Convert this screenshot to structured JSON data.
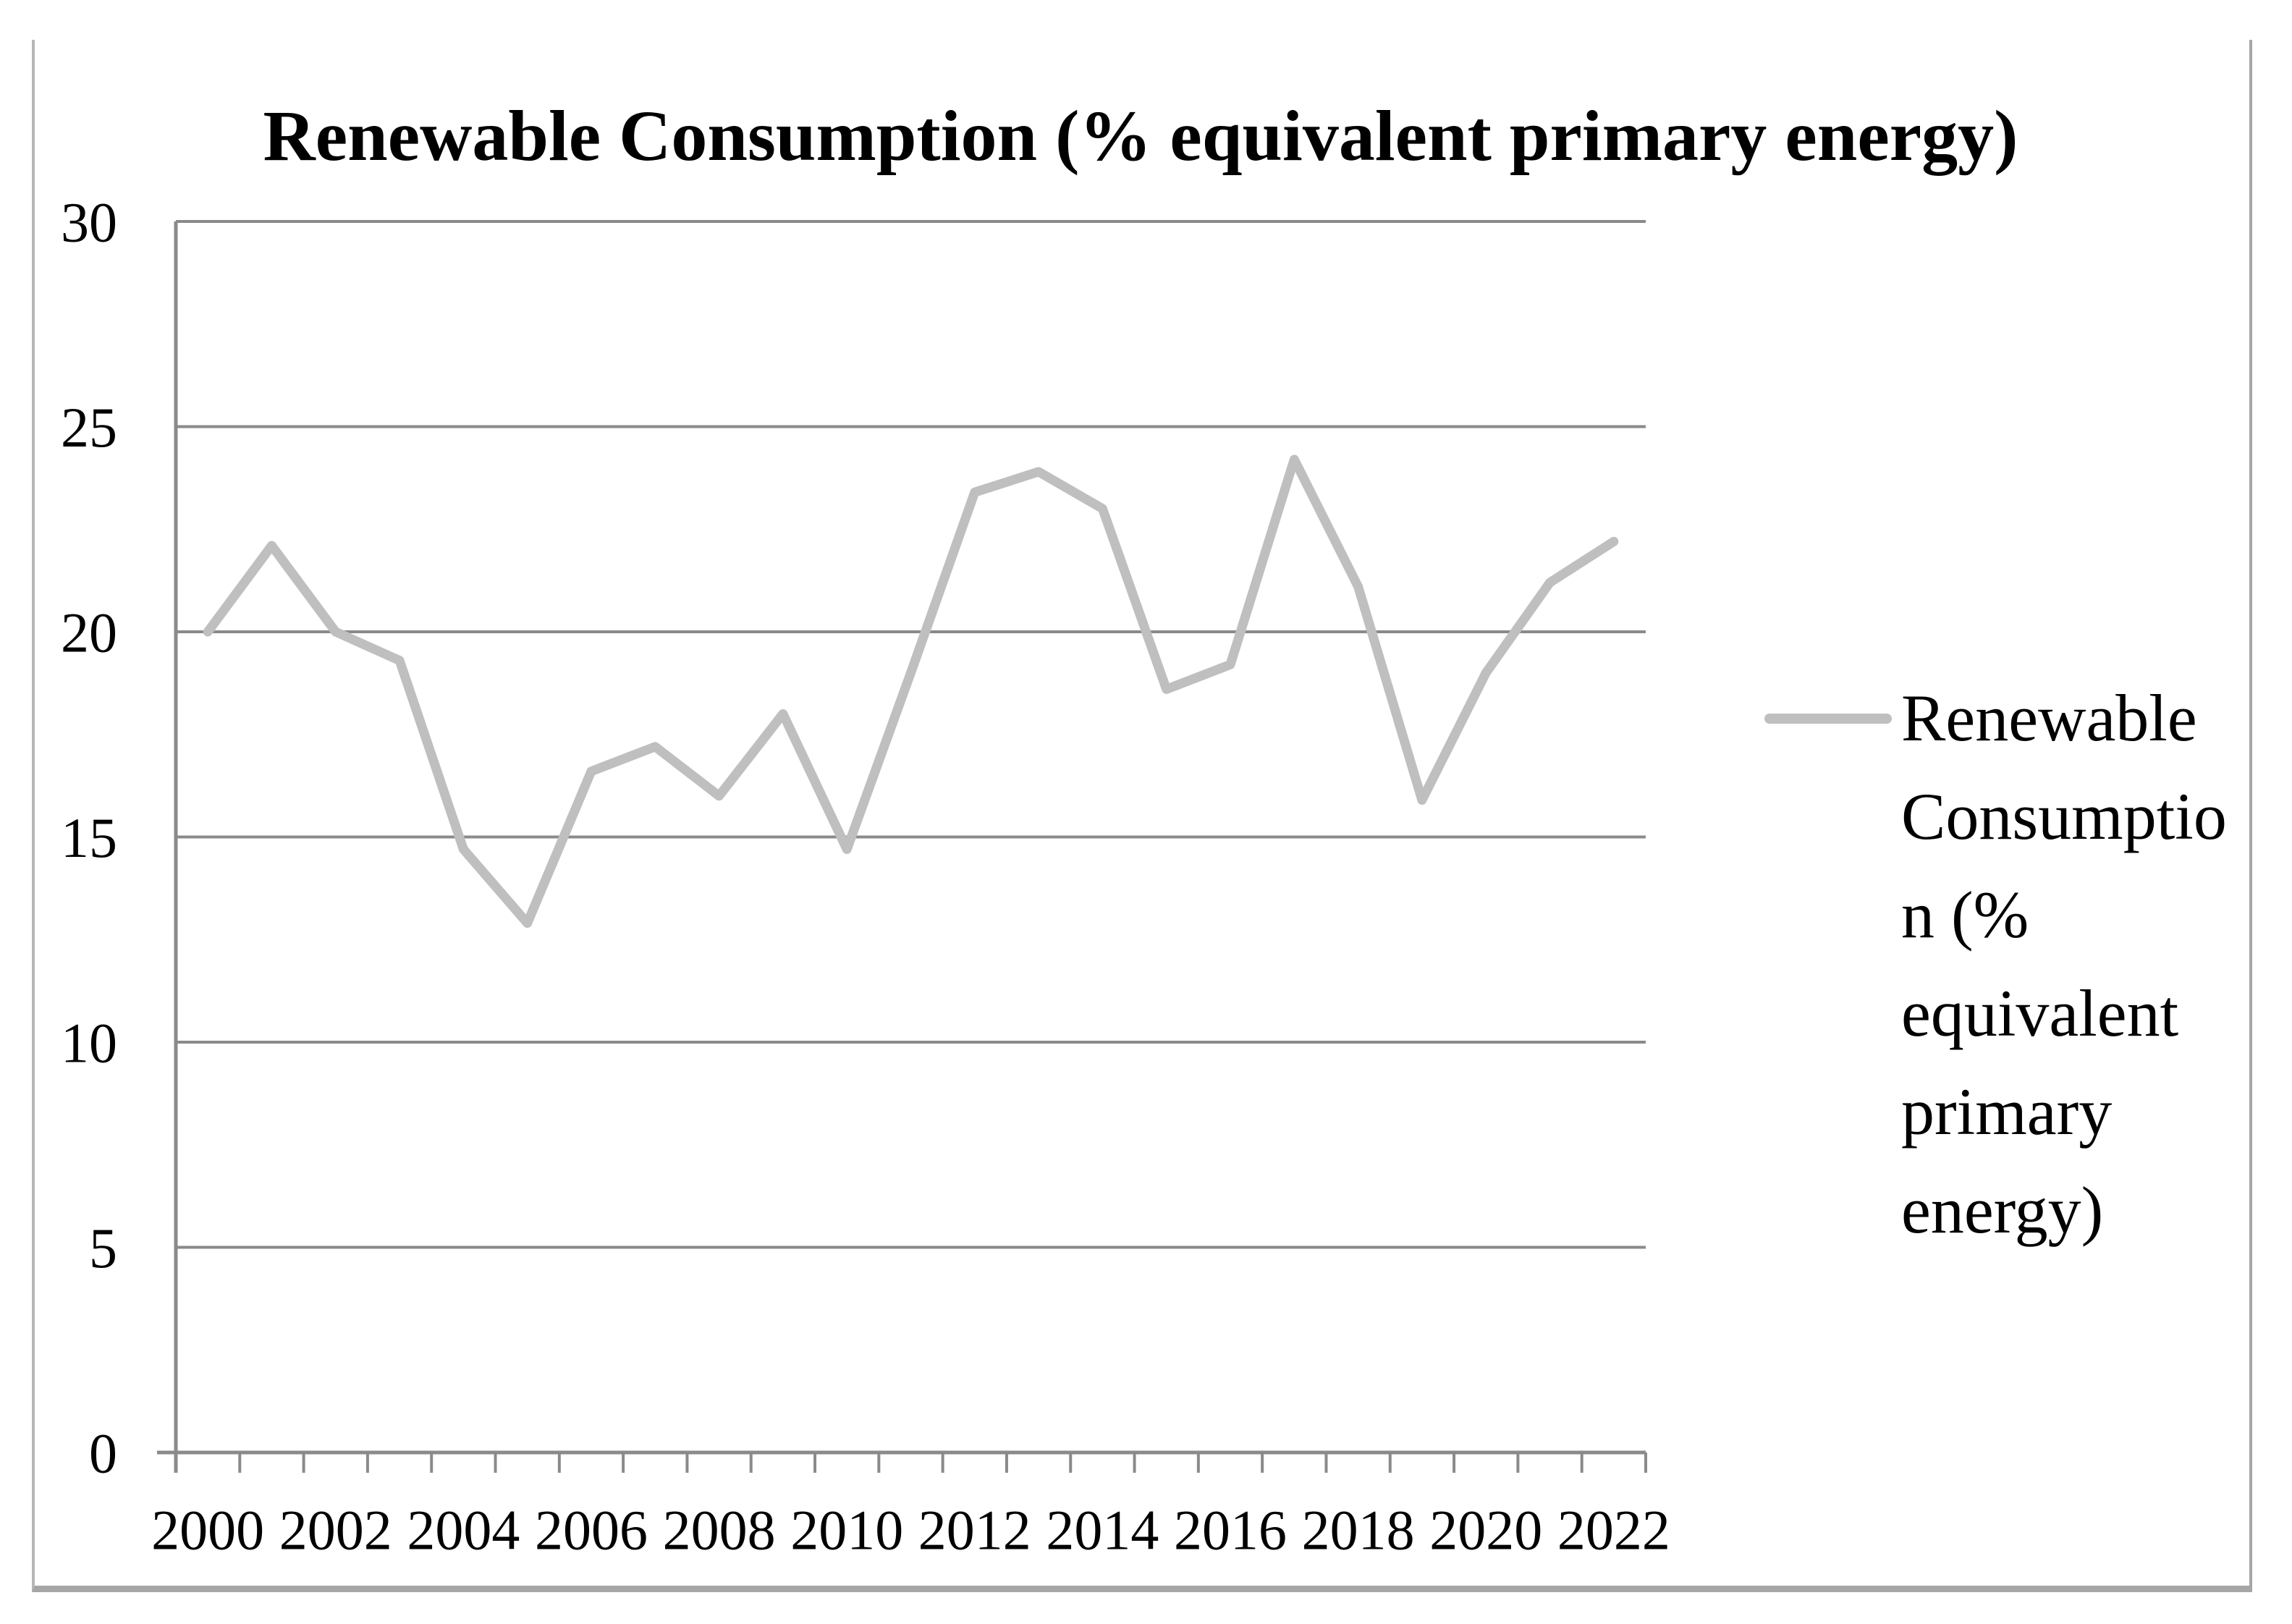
{
  "title": "Renewable Consumption (% equivalent primary energy)",
  "colors": {
    "series_line": "#bfbfbf",
    "gridline": "#8a8a8a",
    "axis_line": "#8a8a8a",
    "tick_mark": "#8a8a8a",
    "text": "#000000",
    "frame_side": "#b7b7b7",
    "frame_bottom": "#a6a6a6",
    "background": "#ffffff"
  },
  "legend": {
    "label": "Renewable Consumption (% equivalent primary energy)",
    "lines": [
      "Renewable",
      "Consumptio",
      "n (%",
      "equivalent",
      "primary",
      "energy)"
    ],
    "swatch_type": "line"
  },
  "y_axis": {
    "tick_labels": [
      "0",
      "5",
      "10",
      "15",
      "20",
      "25",
      "30"
    ],
    "min": 0,
    "max": 30,
    "interval": 5
  },
  "x_axis": {
    "tick_labels": [
      "2000",
      "2002",
      "2004",
      "2006",
      "2008",
      "2010",
      "2012",
      "2014",
      "2016",
      "2018",
      "2020",
      "2022"
    ],
    "label_every_n_years": 2
  },
  "chart_data": {
    "type": "line",
    "title": "Renewable Consumption (% equivalent primary energy)",
    "x": [
      2000,
      2001,
      2002,
      2003,
      2004,
      2005,
      2006,
      2007,
      2008,
      2009,
      2010,
      2011,
      2012,
      2013,
      2014,
      2015,
      2016,
      2017,
      2018,
      2019,
      2020,
      2021,
      2022
    ],
    "series": [
      {
        "name": "Renewable Consumption (% equivalent primary energy)",
        "values": [
          20.0,
          22.1,
          20.0,
          19.3,
          14.7,
          12.9,
          16.6,
          17.2,
          16.0,
          18.0,
          14.7,
          19.0,
          23.4,
          23.9,
          23.0,
          18.6,
          19.2,
          24.2,
          21.1,
          15.9,
          19.0,
          21.2,
          22.2
        ]
      }
    ],
    "ylim": [
      0,
      30
    ],
    "xlabel": "",
    "ylabel": "",
    "grid": true,
    "gridline_values": [
      5,
      10,
      15,
      20,
      25,
      30
    ],
    "legend_position": "right"
  }
}
